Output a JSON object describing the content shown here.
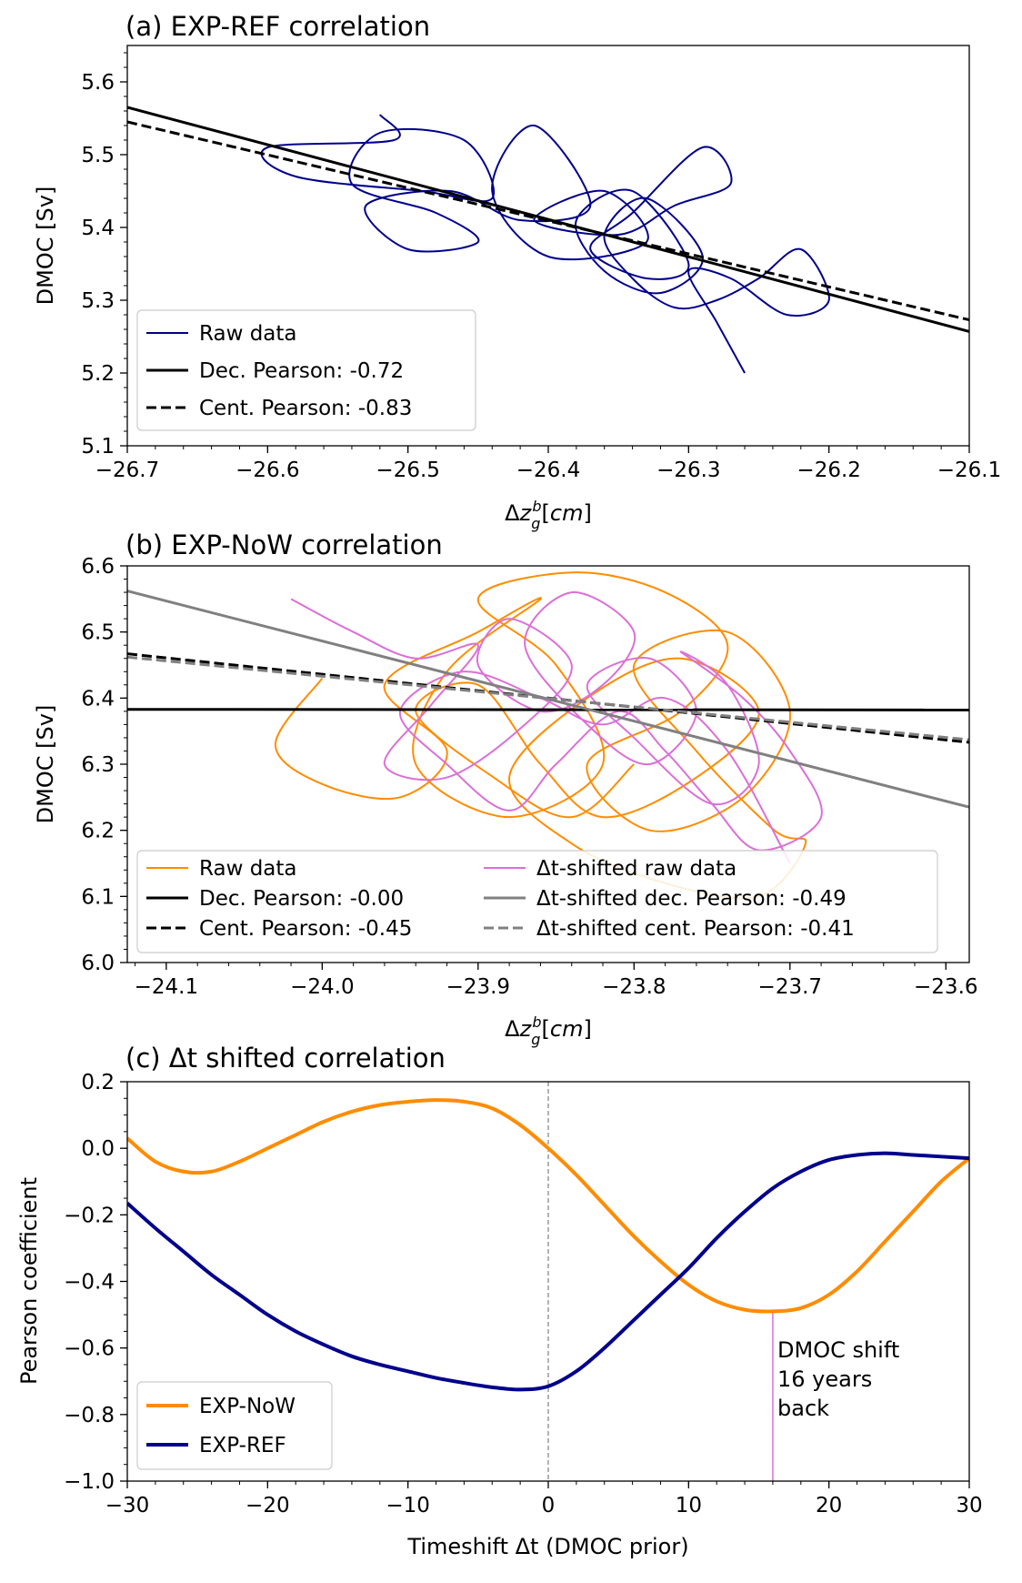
{
  "colors": {
    "ref": "#00008b",
    "now": "#ff8c00",
    "shifted": "#da70d6",
    "shifted_fit": "#808080",
    "fit": "#000000",
    "marker_line": "#da70d6"
  },
  "chart_data": [
    {
      "type": "line",
      "title": "(a) EXP-REF correlation",
      "xlabel": "Δz_g^b[cm]",
      "ylabel": "DMOC [Sv]",
      "xlim": [
        -26.7,
        -26.1
      ],
      "ylim": [
        5.1,
        5.65
      ],
      "xticks": [
        -26.7,
        -26.6,
        -26.5,
        -26.4,
        -26.3,
        -26.2,
        -26.1
      ],
      "xtick_labels": [
        "−26.7",
        "−26.6",
        "−26.5",
        "−26.4",
        "−26.3",
        "−26.2",
        "−26.1"
      ],
      "yticks": [
        5.1,
        5.2,
        5.3,
        5.4,
        5.5,
        5.6
      ],
      "ytick_labels": [
        "5.1",
        "5.2",
        "5.3",
        "5.4",
        "5.5",
        "5.6"
      ],
      "legend_position": "lower-left",
      "series": [
        {
          "name": "Raw data",
          "style": "solid-thin",
          "color_key": "ref",
          "x": [
            -26.52,
            -26.51,
            -26.6,
            -26.58,
            -26.49,
            -26.44,
            -26.46,
            -26.52,
            -26.54,
            -26.48,
            -26.45,
            -26.5,
            -26.53,
            -26.47,
            -26.42,
            -26.37,
            -26.41,
            -26.44,
            -26.4,
            -26.33,
            -26.36,
            -26.41,
            -26.35,
            -26.31,
            -26.27,
            -26.29,
            -26.34,
            -26.37,
            -26.33,
            -26.3,
            -26.34,
            -26.38,
            -26.36,
            -26.32,
            -26.29,
            -26.33,
            -26.36,
            -26.34,
            -26.31,
            -26.28,
            -26.25,
            -26.22,
            -26.2,
            -26.23,
            -26.27,
            -26.3,
            -26.28,
            -26.26
          ],
          "y": [
            5.555,
            5.52,
            5.51,
            5.47,
            5.45,
            5.44,
            5.52,
            5.53,
            5.46,
            5.42,
            5.38,
            5.37,
            5.43,
            5.45,
            5.41,
            5.43,
            5.54,
            5.45,
            5.36,
            5.38,
            5.45,
            5.41,
            5.39,
            5.43,
            5.46,
            5.51,
            5.42,
            5.37,
            5.33,
            5.35,
            5.45,
            5.41,
            5.34,
            5.31,
            5.36,
            5.44,
            5.39,
            5.33,
            5.29,
            5.3,
            5.33,
            5.37,
            5.3,
            5.28,
            5.33,
            5.34,
            5.27,
            5.2
          ]
        },
        {
          "name": "Dec. Pearson: -0.72",
          "style": "solid",
          "color_key": "fit",
          "x": [
            -26.7,
            -26.1
          ],
          "y": [
            5.565,
            5.257
          ]
        },
        {
          "name": "Cent. Pearson: -0.83",
          "style": "dashed",
          "color_key": "fit",
          "x": [
            -26.7,
            -26.1
          ],
          "y": [
            5.545,
            5.273
          ]
        }
      ]
    },
    {
      "type": "line",
      "title": "(b) EXP-NoW correlation",
      "xlabel": "Δz_g^b[cm]",
      "ylabel": "DMOC [Sv]",
      "xlim": [
        -24.125,
        -23.585
      ],
      "ylim": [
        6.0,
        6.6
      ],
      "xticks": [
        -24.1,
        -24.0,
        -23.9,
        -23.8,
        -23.7,
        -23.6
      ],
      "xtick_labels": [
        "−24.1",
        "−24.0",
        "−23.9",
        "−23.8",
        "−23.7",
        "−23.6"
      ],
      "yticks": [
        6.0,
        6.1,
        6.2,
        6.3,
        6.4,
        6.5,
        6.6
      ],
      "ytick_labels": [
        "6.0",
        "6.1",
        "6.2",
        "6.3",
        "6.4",
        "6.5",
        "6.6"
      ],
      "legend_position": "lower-left",
      "series": [
        {
          "name": "Raw data",
          "style": "solid-thin",
          "color_key": "now",
          "x": [
            -24.0,
            -24.03,
            -24.0,
            -23.95,
            -23.92,
            -23.96,
            -23.9,
            -23.86,
            -23.92,
            -23.94,
            -23.88,
            -23.82,
            -23.85,
            -23.9,
            -23.84,
            -23.78,
            -23.74,
            -23.77,
            -23.83,
            -23.79,
            -23.73,
            -23.7,
            -23.74,
            -23.8,
            -23.76,
            -23.71,
            -23.69,
            -23.72,
            -23.78,
            -23.84,
            -23.88,
            -23.83,
            -23.77,
            -23.72,
            -23.76,
            -23.82,
            -23.86,
            -23.9,
            -23.94,
            -23.89,
            -23.84,
            -23.8
          ],
          "y": [
            6.43,
            6.33,
            6.27,
            6.25,
            6.32,
            6.42,
            6.5,
            6.55,
            6.44,
            6.3,
            6.22,
            6.3,
            6.45,
            6.55,
            6.59,
            6.56,
            6.48,
            6.38,
            6.3,
            6.2,
            6.25,
            6.38,
            6.5,
            6.45,
            6.32,
            6.2,
            6.18,
            6.1,
            6.12,
            6.18,
            6.28,
            6.4,
            6.46,
            6.38,
            6.28,
            6.22,
            6.3,
            6.42,
            6.38,
            6.28,
            6.22,
            6.3
          ]
        },
        {
          "name": "Δt-shifted raw data",
          "style": "solid-thin",
          "color_key": "shifted",
          "x": [
            -24.02,
            -23.98,
            -23.94,
            -23.9,
            -23.93,
            -23.96,
            -23.92,
            -23.87,
            -23.84,
            -23.88,
            -23.9,
            -23.86,
            -23.82,
            -23.8,
            -23.84,
            -23.87,
            -23.83,
            -23.79,
            -23.76,
            -23.79,
            -23.83,
            -23.8,
            -23.75,
            -23.72,
            -23.74,
            -23.77,
            -23.73,
            -23.7,
            -23.68,
            -23.72,
            -23.75,
            -23.78,
            -23.81,
            -23.85,
            -23.88,
            -23.92,
            -23.95,
            -23.91,
            -23.86,
            -23.82,
            -23.78,
            -23.74,
            -23.7
          ],
          "y": [
            6.55,
            6.5,
            6.46,
            6.48,
            6.39,
            6.3,
            6.28,
            6.36,
            6.45,
            6.52,
            6.45,
            6.38,
            6.42,
            6.5,
            6.56,
            6.48,
            6.36,
            6.3,
            6.38,
            6.46,
            6.42,
            6.34,
            6.24,
            6.3,
            6.42,
            6.47,
            6.4,
            6.32,
            6.22,
            6.17,
            6.24,
            6.32,
            6.38,
            6.3,
            6.23,
            6.3,
            6.38,
            6.44,
            6.4,
            6.36,
            6.4,
            6.32,
            6.15
          ]
        },
        {
          "name": "Dec. Pearson: -0.00",
          "style": "solid",
          "color_key": "fit",
          "x": [
            -24.125,
            -23.585
          ],
          "y": [
            6.383,
            6.382
          ]
        },
        {
          "name": "Cent. Pearson: -0.45",
          "style": "dashed",
          "color_key": "fit",
          "x": [
            -24.125,
            -23.585
          ],
          "y": [
            6.467,
            6.333
          ]
        },
        {
          "name": "Δt-shifted dec. Pearson: -0.49",
          "style": "solid",
          "color_key": "shifted_fit",
          "x": [
            -24.125,
            -23.585
          ],
          "y": [
            6.562,
            6.235
          ]
        },
        {
          "name": "Δt-shifted cent. Pearson: -0.41",
          "style": "dashed",
          "color_key": "shifted_fit",
          "x": [
            -24.125,
            -23.585
          ],
          "y": [
            6.462,
            6.337
          ]
        }
      ]
    },
    {
      "type": "line",
      "title": "(c) Δt shifted correlation",
      "xlabel": "Timeshift Δt (DMOC prior)",
      "ylabel": "Pearson coefficient",
      "xlim": [
        -30,
        30
      ],
      "ylim": [
        -1.0,
        0.2
      ],
      "xticks": [
        -30,
        -20,
        -10,
        0,
        10,
        20,
        30
      ],
      "xtick_labels": [
        "−30",
        "−20",
        "−10",
        "0",
        "10",
        "20",
        "30"
      ],
      "yticks": [
        -1.0,
        -0.8,
        -0.6,
        -0.4,
        -0.2,
        0.0,
        0.2
      ],
      "ytick_labels": [
        "−1.0",
        "−0.8",
        "−0.6",
        "−0.4",
        "−0.2",
        "0.0",
        "0.2"
      ],
      "legend_position": "lower-left",
      "series": [
        {
          "name": "EXP-NoW",
          "style": "solid-thick",
          "color_key": "now",
          "x": [
            -30,
            -28,
            -26,
            -24,
            -22,
            -20,
            -18,
            -16,
            -14,
            -12,
            -10,
            -8,
            -6,
            -4,
            -2,
            0,
            2,
            4,
            6,
            8,
            10,
            12,
            14,
            16,
            18,
            20,
            22,
            24,
            26,
            28,
            30
          ],
          "y": [
            0.03,
            -0.04,
            -0.07,
            -0.07,
            -0.04,
            0.0,
            0.04,
            0.08,
            0.11,
            0.13,
            0.14,
            0.145,
            0.14,
            0.12,
            0.07,
            0.0,
            -0.08,
            -0.17,
            -0.26,
            -0.34,
            -0.41,
            -0.46,
            -0.485,
            -0.49,
            -0.48,
            -0.44,
            -0.37,
            -0.28,
            -0.19,
            -0.1,
            -0.03
          ]
        },
        {
          "name": "EXP-REF",
          "style": "solid-thick",
          "color_key": "ref",
          "x": [
            -30,
            -28,
            -26,
            -24,
            -22,
            -20,
            -18,
            -16,
            -14,
            -12,
            -10,
            -8,
            -6,
            -4,
            -2,
            0,
            2,
            4,
            6,
            8,
            10,
            12,
            14,
            16,
            18,
            20,
            22,
            24,
            26,
            28,
            30
          ],
          "y": [
            -0.165,
            -0.24,
            -0.31,
            -0.38,
            -0.44,
            -0.5,
            -0.55,
            -0.59,
            -0.625,
            -0.65,
            -0.67,
            -0.69,
            -0.705,
            -0.718,
            -0.725,
            -0.715,
            -0.67,
            -0.6,
            -0.52,
            -0.44,
            -0.36,
            -0.27,
            -0.19,
            -0.12,
            -0.07,
            -0.035,
            -0.02,
            -0.015,
            -0.02,
            -0.025,
            -0.03
          ]
        }
      ],
      "vline_zero": 0,
      "marker_x": 16,
      "annotation": [
        "DMOC shift",
        "16 years",
        "back"
      ]
    }
  ]
}
